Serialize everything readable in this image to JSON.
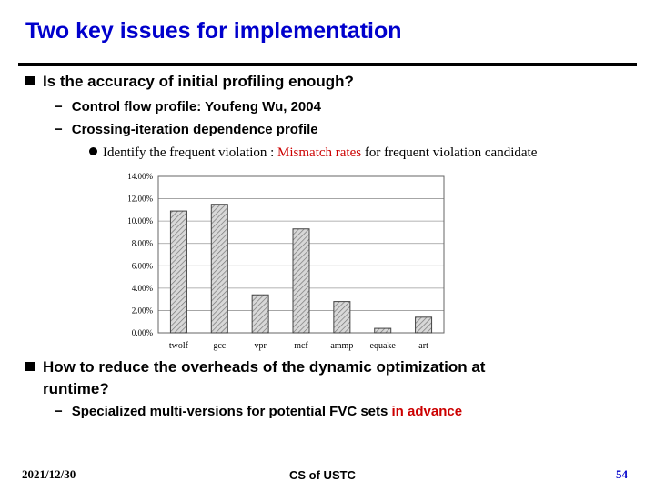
{
  "slide": {
    "title": "Two key issues for implementation",
    "bullet1": "Is the accuracy of initial profiling enough?",
    "sub1": "Control flow profile: Youfeng Wu, 2004",
    "sub2": "Crossing-iteration dependence profile",
    "subsub_a": "Identify the frequent violation : ",
    "subsub_red": "Mismatch rates",
    "subsub_b": " for frequent violation candidate",
    "bullet2_line1": "How to reduce the overheads of the dynamic optimization at",
    "bullet2_line2": "runtime?",
    "sub3_a": "Specialized multi-versions for potential FVC sets ",
    "sub3_red": "in advance"
  },
  "footer": {
    "date": "2021/12/30",
    "center": "CS of USTC",
    "page": "54"
  },
  "colors": {
    "title": "#0000cc",
    "emphasis": "#cc0000",
    "bar_fill": "#d8d8d8",
    "bar_stroke": "#444444",
    "grid": "#999999"
  },
  "chart_data": {
    "type": "bar",
    "categories": [
      "twolf",
      "gcc",
      "vpr",
      "mcf",
      "ammp",
      "equake",
      "art"
    ],
    "values": [
      10.9,
      11.5,
      3.4,
      9.3,
      2.8,
      0.4,
      1.4
    ],
    "ylim": [
      0,
      14
    ],
    "yticks": [
      0,
      2,
      4,
      6,
      8,
      10,
      12,
      14
    ],
    "ytick_labels": [
      "0.00%",
      "2.00%",
      "4.00%",
      "6.00%",
      "8.00%",
      "10.00%",
      "12.00%",
      "14.00%"
    ],
    "title": "",
    "xlabel": "",
    "ylabel": "",
    "grid": true
  }
}
